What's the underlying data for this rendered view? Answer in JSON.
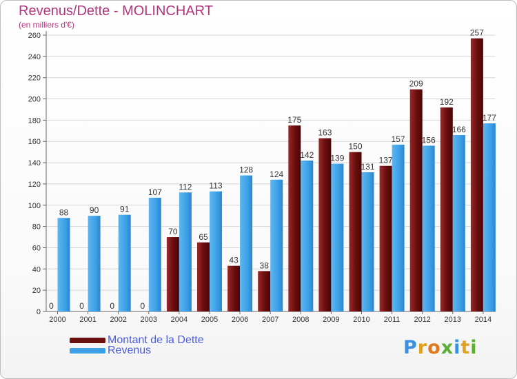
{
  "title": "Revenus/Dette - MOLINCHART",
  "subtitle": "(en milliers d'€)",
  "colors": {
    "dette": "#6b0f0f",
    "revenus": "#3ca0e6",
    "title": "#b0357a",
    "legend_text": "#4a5ce0"
  },
  "logo": {
    "text": "Proxiti",
    "letters": [
      {
        "ch": "P",
        "color": "#3a8fe0"
      },
      {
        "ch": "r",
        "color": "#e0a020"
      },
      {
        "ch": "o",
        "color": "#e07a20"
      },
      {
        "ch": "x",
        "color": "#5cb030"
      },
      {
        "ch": "i",
        "color": "#3a8fe0"
      },
      {
        "ch": "t",
        "color": "#e0a020"
      },
      {
        "ch": "i",
        "color": "#5cb030"
      }
    ]
  },
  "chart_data": {
    "type": "bar",
    "categories": [
      "2000",
      "2001",
      "2002",
      "2003",
      "2004",
      "2005",
      "2006",
      "2007",
      "2008",
      "2009",
      "2010",
      "2011",
      "2012",
      "2013",
      "2014"
    ],
    "series": [
      {
        "name": "Montant de la Dette",
        "values": [
          0,
          0,
          0,
          0,
          70,
          65,
          43,
          38,
          175,
          163,
          150,
          137,
          209,
          192,
          257
        ]
      },
      {
        "name": "Revenus",
        "values": [
          88,
          90,
          91,
          107,
          112,
          113,
          128,
          124,
          142,
          139,
          131,
          157,
          156,
          166,
          177
        ]
      }
    ],
    "ylim": [
      0,
      260
    ],
    "yticks": [
      0,
      20,
      40,
      60,
      80,
      100,
      120,
      140,
      160,
      180,
      200,
      220,
      240,
      260
    ],
    "grid": true,
    "legend": "bottom-left"
  }
}
